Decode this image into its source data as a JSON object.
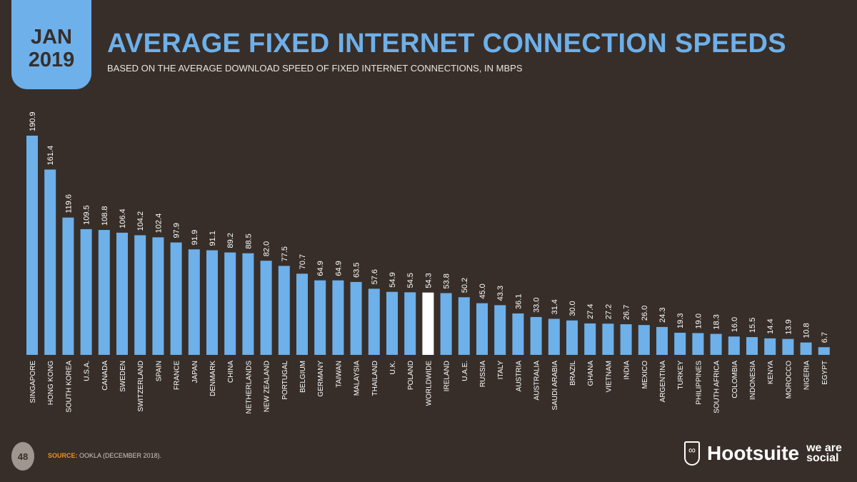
{
  "header": {
    "month": "JAN",
    "year": "2019",
    "title": "AVERAGE FIXED INTERNET CONNECTION SPEEDS",
    "subtitle": "BASED ON THE AVERAGE DOWNLOAD SPEED OF FIXED INTERNET CONNECTIONS, IN MBPS"
  },
  "footer": {
    "page": "48",
    "source_label": "SOURCE:",
    "source_text": "OOKLA (DECEMBER 2018).",
    "logo_hootsuite": "Hootsuite",
    "logo_was": "we are social"
  },
  "colors": {
    "bar": "#6db0ea",
    "highlight": "#ffffff",
    "background": "#372e29"
  },
  "chart_data": {
    "type": "bar",
    "title": "AVERAGE FIXED INTERNET CONNECTION SPEEDS",
    "ylabel": "",
    "xlabel": "",
    "ylim": [
      0,
      190.9
    ],
    "grid": false,
    "highlight": "WORLDWIDE",
    "categories": [
      "SINGAPORE",
      "HONG KONG",
      "SOUTH KOREA",
      "U.S.A.",
      "CANADA",
      "SWEDEN",
      "SWITZERLAND",
      "SPAIN",
      "FRANCE",
      "JAPAN",
      "DENMARK",
      "CHINA",
      "NETHERLANDS",
      "NEW ZEALAND",
      "PORTUGAL",
      "BELGIUM",
      "GERMANY",
      "TAIWAN",
      "MALAYSIA",
      "THAILAND",
      "U.K.",
      "POLAND",
      "WORLDWIDE",
      "IRELAND",
      "U.A.E.",
      "RUSSIA",
      "ITALY",
      "AUSTRIA",
      "AUSTRALIA",
      "SAUDI ARABIA",
      "BRAZIL",
      "GHANA",
      "VIETNAM",
      "INDIA",
      "MEXICO",
      "ARGENTINA",
      "TURKEY",
      "PHILIPPINES",
      "SOUTH AFRICA",
      "COLOMBIA",
      "INDONESIA",
      "KENYA",
      "MOROCCO",
      "NIGERIA",
      "EGYPT"
    ],
    "values": [
      190.9,
      161.4,
      119.6,
      109.5,
      108.8,
      106.4,
      104.2,
      102.4,
      97.9,
      91.9,
      91.1,
      89.2,
      88.5,
      82.0,
      77.5,
      70.7,
      64.9,
      64.9,
      63.5,
      57.6,
      54.9,
      54.5,
      54.3,
      53.8,
      50.2,
      45.0,
      43.3,
      36.1,
      33.0,
      31.4,
      30.0,
      27.4,
      27.2,
      26.7,
      26.0,
      24.3,
      19.3,
      19.0,
      18.3,
      16.0,
      15.5,
      14.4,
      13.9,
      10.8,
      6.7
    ]
  }
}
